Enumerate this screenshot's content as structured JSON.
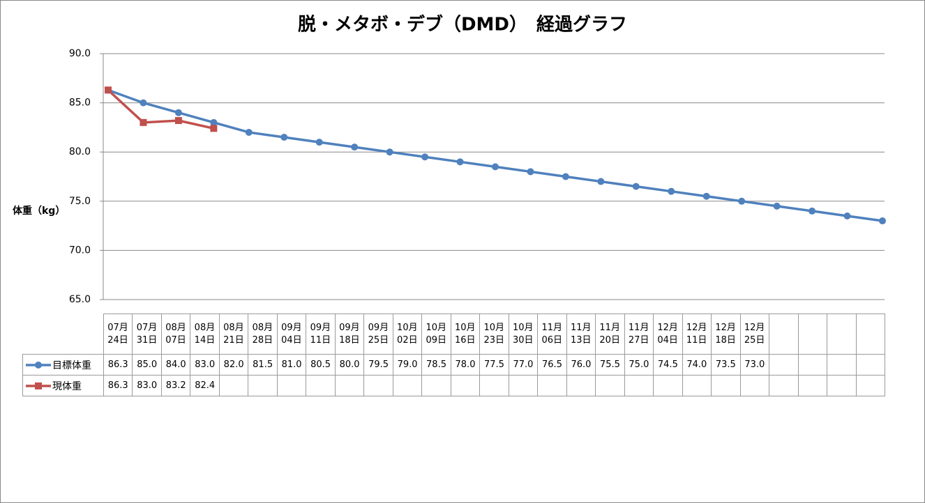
{
  "chart_data": {
    "type": "line",
    "title": "脱・メタボ・デブ（DMD）　経過グラフ",
    "y_label": "体重（kg）",
    "categories": [
      "07月24日",
      "07月31日",
      "08月07日",
      "08月14日",
      "08月21日",
      "08月28日",
      "09月04日",
      "09月11日",
      "09月18日",
      "09月25日",
      "10月02日",
      "10月09日",
      "10月16日",
      "10月23日",
      "10月30日",
      "11月06日",
      "11月13日",
      "11月20日",
      "11月27日",
      "12月04日",
      "12月11日",
      "12月18日",
      "12月25日",
      null,
      null,
      null,
      null
    ],
    "series": [
      {
        "name": "目標体重",
        "color": "#4f81bd",
        "marker": "circle",
        "values": [
          86.3,
          85,
          84,
          83,
          82,
          81.5,
          81,
          80.5,
          80,
          79.5,
          79,
          78.5,
          78,
          77.5,
          77,
          76.5,
          76,
          75.5,
          75,
          74.5,
          74,
          73.5,
          73,
          null,
          null,
          null,
          null
        ],
        "value_labels": [
          "86.3",
          "85.0",
          "84.0",
          "83.0",
          "82.0",
          "81.5",
          "81.0",
          "80.5",
          "80.0",
          "79.5",
          "79.0",
          "78.5",
          "78.0",
          "77.5",
          "77.0",
          "76.5",
          "76.0",
          "75.5",
          "75.0",
          "74.5",
          "74.0",
          "73.5",
          "73.0",
          null,
          null,
          null,
          null
        ]
      },
      {
        "name": "現体重",
        "color": "#c0504d",
        "marker": "square",
        "values": [
          86.3,
          83,
          83.2,
          82.4,
          null,
          null,
          null,
          null,
          null,
          null,
          null,
          null,
          null,
          null,
          null,
          null,
          null,
          null,
          null,
          null,
          null,
          null,
          null,
          null,
          null,
          null,
          null
        ],
        "value_labels": [
          "86.3",
          "83.0",
          "83.2",
          "82.4",
          null,
          null,
          null,
          null,
          null,
          null,
          null,
          null,
          null,
          null,
          null,
          null,
          null,
          null,
          null,
          null,
          null,
          null,
          null,
          null,
          null,
          null,
          null
        ]
      }
    ],
    "ylim": [
      65,
      90
    ],
    "yticks": [
      {
        "value": 65,
        "label": "65.0"
      },
      {
        "value": 70,
        "label": "70.0"
      },
      {
        "value": 75,
        "label": "75.0"
      },
      {
        "value": 80,
        "label": "80.0"
      },
      {
        "value": 85,
        "label": "85.0"
      },
      {
        "value": 90,
        "label": "90.0"
      }
    ],
    "grid": true
  }
}
